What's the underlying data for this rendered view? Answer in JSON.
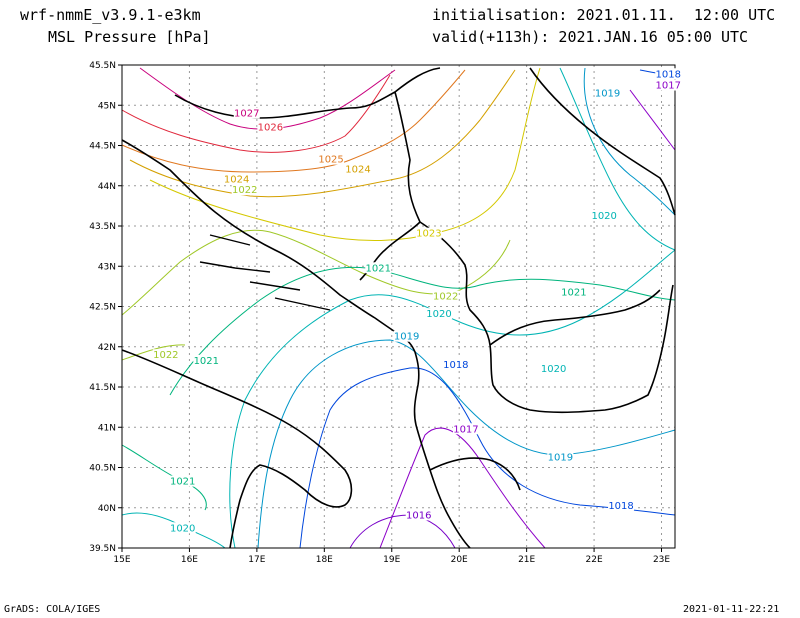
{
  "header": {
    "model": "wrf-nmmE_v3.9.1-e3km",
    "field": "MSL Pressure [hPa]",
    "initialisation": "initialisation: 2021.01.11.  12:00 UTC",
    "valid": "valid(+113h): 2021.JAN.16 05:00 UTC"
  },
  "footer": {
    "left": "GrADS: COLA/IGES",
    "right": "2021-01-11-22:21"
  },
  "map": {
    "x_ticks": [
      "15E",
      "16E",
      "17E",
      "18E",
      "19E",
      "20E",
      "21E",
      "22E",
      "23E"
    ],
    "y_ticks": [
      "45.5N",
      "45N",
      "44.5N",
      "44N",
      "43.5N",
      "43N",
      "42.5N",
      "42N",
      "41.5N",
      "41N",
      "40.5N",
      "40N",
      "39.5N"
    ],
    "grid": true,
    "contour_labels": [
      {
        "text": "1027",
        "lon": 16.85,
        "lat": 44.87,
        "color": "#c8007d"
      },
      {
        "text": "1026",
        "lon": 17.2,
        "lat": 44.7,
        "color": "#e0283c"
      },
      {
        "text": "1025",
        "lon": 18.1,
        "lat": 44.3,
        "color": "#e07820"
      },
      {
        "text": "1024",
        "lon": 18.5,
        "lat": 44.18,
        "color": "#d4a000"
      },
      {
        "text": "1024",
        "lon": 16.7,
        "lat": 44.05,
        "color": "#d4a000"
      },
      {
        "text": "1022",
        "lon": 16.82,
        "lat": 43.92,
        "color": "#a0c828"
      },
      {
        "text": "1023",
        "lon": 19.55,
        "lat": 43.38,
        "color": "#d4c800"
      },
      {
        "text": "1021",
        "lon": 18.8,
        "lat": 42.95,
        "color": "#00b47d"
      },
      {
        "text": "1022",
        "lon": 19.8,
        "lat": 42.6,
        "color": "#a0c828"
      },
      {
        "text": "1021",
        "lon": 21.7,
        "lat": 42.65,
        "color": "#00b47d"
      },
      {
        "text": "1020",
        "lon": 19.7,
        "lat": 42.38,
        "color": "#00b4b4"
      },
      {
        "text": "1019",
        "lon": 19.22,
        "lat": 42.1,
        "color": "#0096c8"
      },
      {
        "text": "1022",
        "lon": 15.65,
        "lat": 41.87,
        "color": "#a0c828"
      },
      {
        "text": "1021",
        "lon": 16.25,
        "lat": 41.8,
        "color": "#00b47d"
      },
      {
        "text": "1018",
        "lon": 19.95,
        "lat": 41.75,
        "color": "#0046dc"
      },
      {
        "text": "1020",
        "lon": 21.4,
        "lat": 41.7,
        "color": "#00b4b4"
      },
      {
        "text": "1017",
        "lon": 20.1,
        "lat": 40.95,
        "color": "#8c00c8"
      },
      {
        "text": "1019",
        "lon": 21.5,
        "lat": 40.6,
        "color": "#0096c8"
      },
      {
        "text": "1021",
        "lon": 15.9,
        "lat": 40.3,
        "color": "#00b47d"
      },
      {
        "text": "1020",
        "lon": 15.9,
        "lat": 39.72,
        "color": "#00b4b4"
      },
      {
        "text": "1016",
        "lon": 19.4,
        "lat": 39.88,
        "color": "#7800c8"
      },
      {
        "text": "1018",
        "lon": 22.4,
        "lat": 40.0,
        "color": "#0046dc"
      },
      {
        "text": "1019",
        "lon": 22.2,
        "lat": 45.12,
        "color": "#0096c8"
      },
      {
        "text": "1018",
        "lon": 23.1,
        "lat": 45.36,
        "color": "#0046dc"
      },
      {
        "text": "1017",
        "lon": 23.1,
        "lat": 45.22,
        "color": "#8c00c8"
      },
      {
        "text": "1020",
        "lon": 22.15,
        "lat": 43.6,
        "color": "#00b4b4"
      }
    ],
    "colors": {
      "p1027": "#c8007d",
      "p1026": "#e0283c",
      "p1025": "#e07820",
      "p1024": "#d4a000",
      "p1023": "#d4c800",
      "p1022": "#a0c828",
      "p1021": "#00b47d",
      "p1020": "#00b4b4",
      "p1019": "#0096c8",
      "p1018": "#0046dc",
      "p1017": "#8c00c8",
      "p1016": "#7800c8",
      "coast": "#000000",
      "grid": "#9a9a9a"
    }
  }
}
